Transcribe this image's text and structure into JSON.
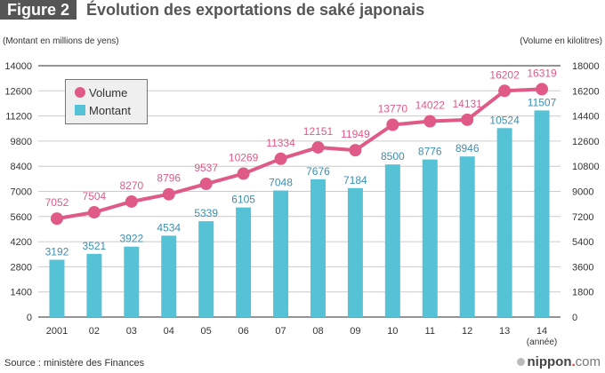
{
  "header": {
    "figure_label": "Figure 2",
    "title": "Évolution des exportations de saké japonais"
  },
  "axis_units": {
    "left": "(Montant en millions de yens)",
    "right": "(Volume en kilolitres)"
  },
  "legend": {
    "volume": "Volume",
    "montant": "Montant"
  },
  "footer": {
    "source": "Source : ministère des Finances",
    "brand_name": "nippon",
    "brand_dot": ".",
    "brand_tld": "com"
  },
  "colors": {
    "volume": "#e05a87",
    "montant": "#56c2d6",
    "volume_label": "#e05a87",
    "montant_label": "#3a8fb0",
    "grid": "#cccccc",
    "axis": "#555555"
  },
  "chart_data": {
    "type": "bar+line",
    "title": "Évolution des exportations de saké japonais",
    "categories": [
      "2001",
      "02",
      "03",
      "04",
      "05",
      "06",
      "07",
      "08",
      "09",
      "10",
      "11",
      "12",
      "13",
      "14"
    ],
    "x_unit_label": "(année)",
    "series": [
      {
        "name": "Montant",
        "type": "bar",
        "axis": "left",
        "values": [
          3192,
          3521,
          3922,
          4534,
          5339,
          6105,
          7048,
          7676,
          7184,
          8500,
          8776,
          8946,
          10524,
          11507
        ]
      },
      {
        "name": "Volume",
        "type": "line",
        "axis": "right",
        "values": [
          7052,
          7504,
          8270,
          8796,
          9537,
          10269,
          11334,
          12151,
          11949,
          13770,
          14022,
          14131,
          16202,
          16319
        ]
      }
    ],
    "left_axis": {
      "label": "(Montant en millions de yens)",
      "ylim": [
        0,
        14000
      ],
      "ticks": [
        0,
        1400,
        2800,
        4200,
        5600,
        7000,
        8400,
        9800,
        11200,
        12600,
        14000
      ]
    },
    "right_axis": {
      "label": "(Volume en kilolitres)",
      "ylim": [
        0,
        18000
      ],
      "ticks": [
        0,
        1800,
        3600,
        5400,
        7200,
        9000,
        10800,
        12600,
        14400,
        16200,
        18000
      ]
    },
    "grid": true,
    "legend_position": "top-left",
    "source": "Source : ministère des Finances"
  }
}
